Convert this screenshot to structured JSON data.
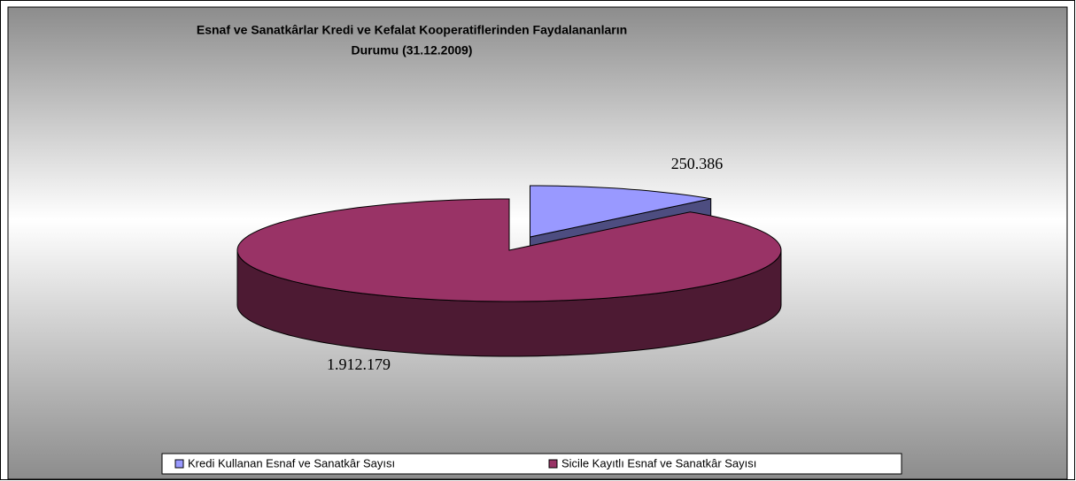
{
  "chart_data": {
    "type": "pie3d",
    "title": [
      "Esnaf ve Sanatkârlar Kredi ve Kefalat Kooperatiflerinden Faydalananların",
      "Durumu (31.12.2009)"
    ],
    "categories": [
      "Kredi Kullanan Esnaf ve Sanatkâr Sayısı",
      "Sicile Kayıtlı Esnaf ve Sanatkâr Sayısı"
    ],
    "values": [
      250386,
      1912179
    ],
    "value_labels": [
      "250.386",
      "1.912.179"
    ],
    "colors": [
      "#9999ff",
      "#993366"
    ],
    "legend": "bottom"
  }
}
